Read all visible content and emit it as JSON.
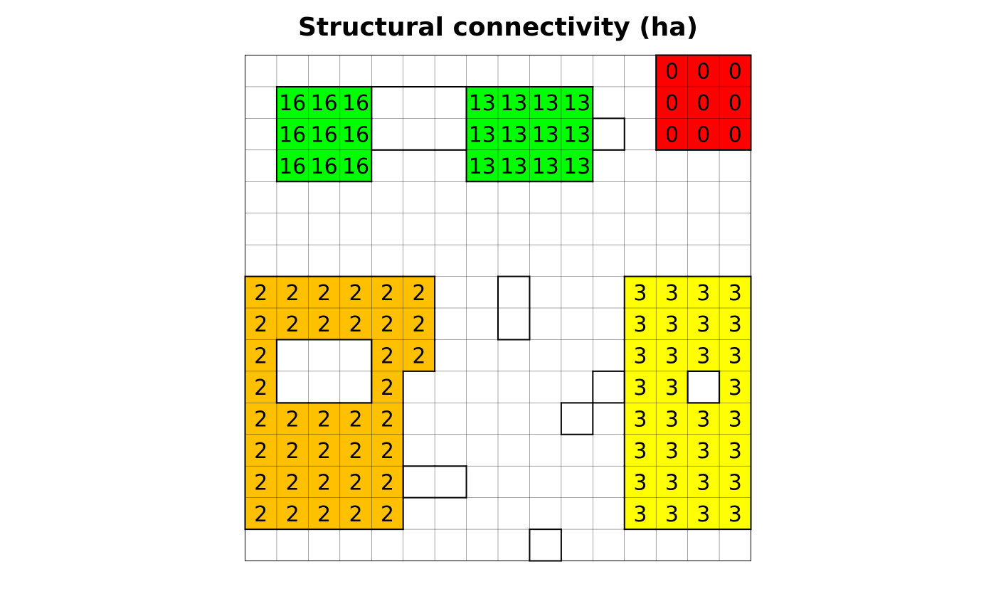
{
  "title": "Structural connectivity (ha)",
  "colors": {
    "background": "#ffffff",
    "cells": [
      "#ffffff",
      "#ff0000",
      "#00ff00",
      "#ffc000",
      "#ffff00"
    ],
    "grid": "#000000"
  },
  "chart_data": {
    "type": "heatmap",
    "title": "Structural connectivity (ha)",
    "rows": 16,
    "cols": 16,
    "cell_classes": [
      "0000000000000111",
      "0222000222200111",
      "0222000222200111",
      "0222000222200000",
      "0000000000000000",
      "0000000000000000",
      "0000000000000000",
      "3333330000004444",
      "3333330000004444",
      "3000330000004444",
      "3000300000004404",
      "3333300000004444",
      "3333300000004444",
      "3333300000004444",
      "3333300000004444",
      "0000000000000000"
    ],
    "cell_labels": [
      [
        "",
        "",
        "",
        "",
        "",
        "",
        "",
        "",
        "",
        "",
        "",
        "",
        "",
        "0",
        "0",
        "0"
      ],
      [
        "",
        "16",
        "16",
        "16",
        "",
        "",
        "",
        "13",
        "13",
        "13",
        "13",
        "",
        "",
        "0",
        "0",
        "0"
      ],
      [
        "",
        "16",
        "16",
        "16",
        "",
        "",
        "",
        "13",
        "13",
        "13",
        "13",
        "",
        "",
        "0",
        "0",
        "0"
      ],
      [
        "",
        "16",
        "16",
        "16",
        "",
        "",
        "",
        "13",
        "13",
        "13",
        "13",
        "",
        "",
        "",
        "",
        ""
      ],
      [
        "",
        "",
        "",
        "",
        "",
        "",
        "",
        "",
        "",
        "",
        "",
        "",
        "",
        "",
        "",
        ""
      ],
      [
        "",
        "",
        "",
        "",
        "",
        "",
        "",
        "",
        "",
        "",
        "",
        "",
        "",
        "",
        "",
        ""
      ],
      [
        "",
        "",
        "",
        "",
        "",
        "",
        "",
        "",
        "",
        "",
        "",
        "",
        "",
        "",
        "",
        ""
      ],
      [
        "2",
        "2",
        "2",
        "2",
        "2",
        "2",
        "",
        "",
        "",
        "",
        "",
        "",
        "3",
        "3",
        "3",
        "3"
      ],
      [
        "2",
        "2",
        "2",
        "2",
        "2",
        "2",
        "",
        "",
        "",
        "",
        "",
        "",
        "3",
        "3",
        "3",
        "3"
      ],
      [
        "2",
        "",
        "",
        "",
        "2",
        "2",
        "",
        "",
        "",
        "",
        "",
        "",
        "3",
        "3",
        "3",
        "3"
      ],
      [
        "2",
        "",
        "",
        "",
        "2",
        "",
        "",
        "",
        "",
        "",
        "",
        "",
        "3",
        "3",
        "",
        "3"
      ],
      [
        "2",
        "2",
        "2",
        "2",
        "2",
        "",
        "",
        "",
        "",
        "",
        "",
        "",
        "3",
        "3",
        "3",
        "3"
      ],
      [
        "2",
        "2",
        "2",
        "2",
        "2",
        "",
        "",
        "",
        "",
        "",
        "",
        "",
        "3",
        "3",
        "3",
        "3"
      ],
      [
        "2",
        "2",
        "2",
        "2",
        "2",
        "",
        "",
        "",
        "",
        "",
        "",
        "",
        "3",
        "3",
        "3",
        "3"
      ],
      [
        "2",
        "2",
        "2",
        "2",
        "2",
        "",
        "",
        "",
        "",
        "",
        "",
        "",
        "3",
        "3",
        "3",
        "3"
      ],
      [
        "",
        "",
        "",
        "",
        "",
        "",
        "",
        "",
        "",
        "",
        "",
        "",
        "",
        "",
        "",
        ""
      ]
    ],
    "patches": [
      {
        "id": "16",
        "color": "#00ff00"
      },
      {
        "id": "13",
        "color": "#00ff00"
      },
      {
        "id": "0",
        "color": "#ff0000"
      },
      {
        "id": "2",
        "color": "#ffc000"
      },
      {
        "id": "3",
        "color": "#ffff00"
      }
    ],
    "outlined_white_patches": [
      [
        [
          1,
          4
        ],
        [
          1,
          5
        ],
        [
          1,
          6
        ],
        [
          2,
          4
        ],
        [
          2,
          5
        ],
        [
          2,
          6
        ]
      ],
      [
        [
          2,
          11
        ]
      ],
      [
        [
          7,
          8
        ],
        [
          8,
          8
        ]
      ],
      [
        [
          9,
          1
        ],
        [
          9,
          2
        ],
        [
          9,
          3
        ],
        [
          10,
          1
        ],
        [
          10,
          2
        ],
        [
          10,
          3
        ]
      ],
      [
        [
          10,
          11
        ],
        [
          11,
          10
        ]
      ],
      [
        [
          10,
          14
        ]
      ],
      [
        [
          13,
          5
        ],
        [
          13,
          6
        ]
      ],
      [
        [
          15,
          9
        ]
      ]
    ],
    "grid": true
  }
}
